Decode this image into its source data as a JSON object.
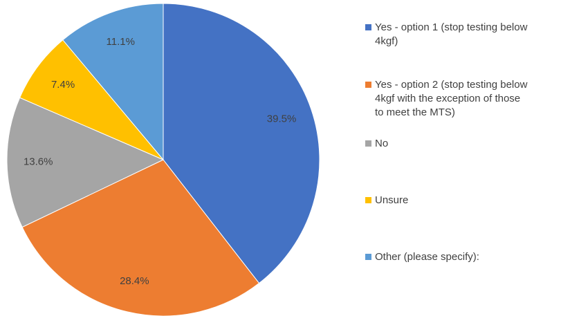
{
  "chart_data": {
    "type": "pie",
    "title": "",
    "start_angle_deg": 0,
    "direction": "clockwise",
    "slices": [
      {
        "label": "Yes - option 1 (stop testing below\n4kgf)",
        "value": 39.5,
        "value_label": "39.5%",
        "color": "#4472C4"
      },
      {
        "label": "Yes - option 2 (stop testing below\n4kgf with the exception of those\nto meet the MTS)",
        "value": 28.4,
        "value_label": "28.4%",
        "color": "#ED7D31"
      },
      {
        "label": "No",
        "value": 13.6,
        "value_label": "13.6%",
        "color": "#A5A5A5"
      },
      {
        "label": "Unsure",
        "value": 7.4,
        "value_label": "7.4%",
        "color": "#FFC000"
      },
      {
        "label": "Other (please specify):",
        "value": 11.1,
        "value_label": "11.1%",
        "color": "#5B9BD5"
      }
    ],
    "legend_position": "right"
  }
}
